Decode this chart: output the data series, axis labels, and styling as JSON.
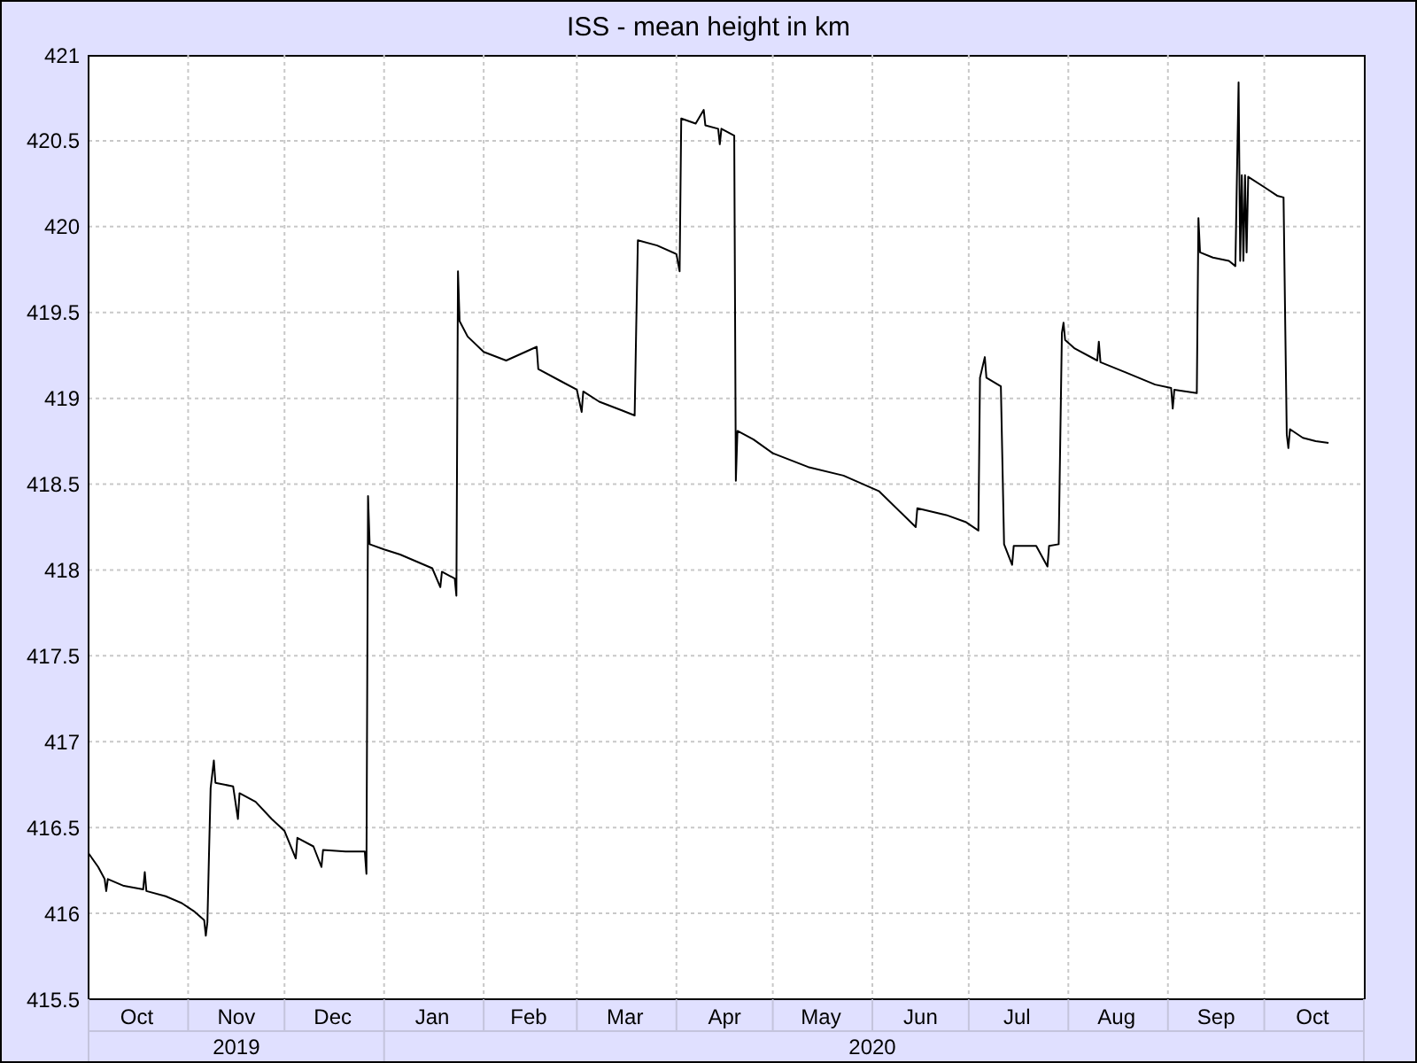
{
  "chart_data": {
    "type": "line",
    "title": "ISS - mean height in km",
    "color": "#000000",
    "marker": "none",
    "line_style": "solid",
    "grid": true,
    "x": [
      "2019-10-01",
      "2019-10-04",
      "2019-10-06",
      "2019-10-06T12:00",
      "2019-10-07",
      "2019-10-12",
      "2019-10-18",
      "2019-10-18T12:00",
      "2019-10-19",
      "2019-10-25",
      "2019-10-30",
      "2019-11-03",
      "2019-11-06",
      "2019-11-06T12:00",
      "2019-11-07",
      "2019-11-07T12:00",
      "2019-11-08",
      "2019-11-09",
      "2019-11-09T12:00",
      "2019-11-15",
      "2019-11-16T12:00",
      "2019-11-17",
      "2019-11-22",
      "2019-11-27",
      "2019-12-01",
      "2019-12-04T12:00",
      "2019-12-05",
      "2019-12-10",
      "2019-12-12T12:00",
      "2019-12-13",
      "2019-12-20",
      "2019-12-26",
      "2019-12-26T12:00",
      "2019-12-27",
      "2019-12-27T12:00",
      "2020-01-01",
      "2020-01-06",
      "2020-01-11",
      "2020-01-16",
      "2020-01-18T12:00",
      "2020-01-19",
      "2020-01-23",
      "2020-01-23T12:00",
      "2020-01-24",
      "2020-01-24T12:00",
      "2020-01-27",
      "2020-02-01",
      "2020-02-08",
      "2020-02-17T12:00",
      "2020-02-18",
      "2020-02-25",
      "2020-03-01",
      "2020-03-02T12:00",
      "2020-03-03",
      "2020-03-08",
      "2020-03-15",
      "2020-03-19",
      "2020-03-19T12:00",
      "2020-03-20",
      "2020-03-26",
      "2020-04-01",
      "2020-04-02",
      "2020-04-02T12:00",
      "2020-04-07",
      "2020-04-09T12:00",
      "2020-04-10",
      "2020-04-14",
      "2020-04-14T12:00",
      "2020-04-15",
      "2020-04-19",
      "2020-04-19T12:00",
      "2020-04-20",
      "2020-04-25",
      "2020-05-01",
      "2020-05-12",
      "2020-05-23",
      "2020-06-03",
      "2020-06-14T12:00",
      "2020-06-15",
      "2020-06-24",
      "2020-06-30",
      "2020-07-04",
      "2020-07-04T12:00",
      "2020-07-06",
      "2020-07-06T12:00",
      "2020-07-11",
      "2020-07-12",
      "2020-07-14T12:00",
      "2020-07-15",
      "2020-07-22",
      "2020-07-25T12:00",
      "2020-07-26",
      "2020-07-29",
      "2020-07-30",
      "2020-07-30T12:00",
      "2020-07-31",
      "2020-08-03",
      "2020-08-10",
      "2020-08-10T12:00",
      "2020-08-11",
      "2020-08-19",
      "2020-08-28",
      "2020-09-02",
      "2020-09-02T12:00",
      "2020-09-03",
      "2020-09-10",
      "2020-09-10T12:00",
      "2020-09-11",
      "2020-09-15",
      "2020-09-20",
      "2020-09-22",
      "2020-09-23",
      "2020-09-23T12:00",
      "2020-09-24",
      "2020-09-24T12:00",
      "2020-09-25",
      "2020-09-25T12:00",
      "2020-09-26",
      "2020-10-01",
      "2020-10-05",
      "2020-10-07",
      "2020-10-07T12:00",
      "2020-10-08",
      "2020-10-08T12:00",
      "2020-10-09",
      "2020-10-13",
      "2020-10-17",
      "2020-10-21"
    ],
    "values": [
      416.35,
      416.27,
      416.2,
      416.13,
      416.2,
      416.16,
      416.14,
      416.24,
      416.13,
      416.1,
      416.06,
      416.01,
      415.96,
      415.87,
      415.95,
      416.35,
      416.73,
      416.89,
      416.76,
      416.74,
      416.55,
      416.7,
      416.65,
      416.55,
      416.48,
      416.32,
      416.44,
      416.39,
      416.27,
      416.37,
      416.36,
      416.36,
      416.23,
      418.43,
      418.15,
      418.12,
      418.09,
      418.05,
      418.01,
      417.9,
      417.99,
      417.95,
      417.85,
      419.74,
      419.45,
      419.36,
      419.27,
      419.22,
      419.3,
      419.17,
      419.1,
      419.05,
      418.92,
      419.04,
      418.98,
      418.93,
      418.9,
      419.43,
      419.92,
      419.89,
      419.84,
      419.74,
      420.63,
      420.6,
      420.68,
      420.59,
      420.57,
      420.48,
      420.57,
      420.53,
      418.52,
      418.81,
      418.76,
      418.68,
      418.6,
      418.55,
      418.46,
      418.25,
      418.36,
      418.32,
      418.28,
      418.23,
      419.12,
      419.24,
      419.12,
      419.07,
      418.15,
      418.03,
      418.14,
      418.14,
      418.02,
      418.14,
      418.15,
      419.38,
      419.44,
      419.34,
      419.29,
      419.22,
      419.33,
      419.21,
      419.15,
      419.08,
      419.06,
      418.94,
      419.05,
      419.03,
      420.05,
      419.85,
      419.82,
      419.8,
      419.77,
      420.84,
      419.8,
      420.3,
      419.8,
      420.3,
      419.85,
      420.29,
      420.23,
      420.18,
      420.17,
      419.46,
      418.79,
      418.71,
      418.82,
      418.77,
      418.75,
      418.74
    ],
    "xlim": [
      "2019-10-01",
      "2020-11-01"
    ],
    "xticks": [
      {
        "value": "2019-10-01",
        "label": null
      },
      {
        "value": "2019-10-16",
        "label": "Oct"
      },
      {
        "value": "2019-11-01",
        "label": null
      },
      {
        "value": "2019-11-16",
        "label": "Nov"
      },
      {
        "value": "2019-12-01",
        "label": null
      },
      {
        "value": "2019-12-16",
        "label": "Dec"
      },
      {
        "value": "2020-01-01",
        "label": null
      },
      {
        "value": "2020-01-16",
        "label": "Jan"
      },
      {
        "value": "2020-02-01",
        "label": null
      },
      {
        "value": "2020-02-15",
        "label": "Feb"
      },
      {
        "value": "2020-03-01",
        "label": null
      },
      {
        "value": "2020-03-16",
        "label": "Mar"
      },
      {
        "value": "2020-04-01",
        "label": null
      },
      {
        "value": "2020-04-16",
        "label": "Apr"
      },
      {
        "value": "2020-05-01",
        "label": null
      },
      {
        "value": "2020-05-16",
        "label": "May"
      },
      {
        "value": "2020-06-01",
        "label": null
      },
      {
        "value": "2020-06-16",
        "label": "Jun"
      },
      {
        "value": "2020-07-01",
        "label": null
      },
      {
        "value": "2020-07-16",
        "label": "Jul"
      },
      {
        "value": "2020-08-01",
        "label": null
      },
      {
        "value": "2020-08-16",
        "label": "Aug"
      },
      {
        "value": "2020-09-01",
        "label": null
      },
      {
        "value": "2020-09-16",
        "label": "Sep"
      },
      {
        "value": "2020-10-01",
        "label": null
      },
      {
        "value": "2020-10-16",
        "label": "Oct"
      },
      {
        "value": "2020-11-01",
        "label": null
      }
    ],
    "x2lim": [
      "2019-10-01",
      "2020-11-01"
    ],
    "x2ticks": [
      {
        "value": "2019-10-01",
        "label": null
      },
      {
        "value": "2019-11-16",
        "label": "2019"
      },
      {
        "value": "2020-01-01",
        "label": null
      },
      {
        "value": "2020-06-01",
        "label": "2020"
      },
      {
        "value": "2020-11-01",
        "label": null
      }
    ],
    "ylim": [
      415.5,
      421
    ],
    "yticks": [
      415.5,
      416,
      416.5,
      417,
      417.5,
      418,
      418.5,
      419,
      419.5,
      420,
      420.5,
      421
    ]
  }
}
